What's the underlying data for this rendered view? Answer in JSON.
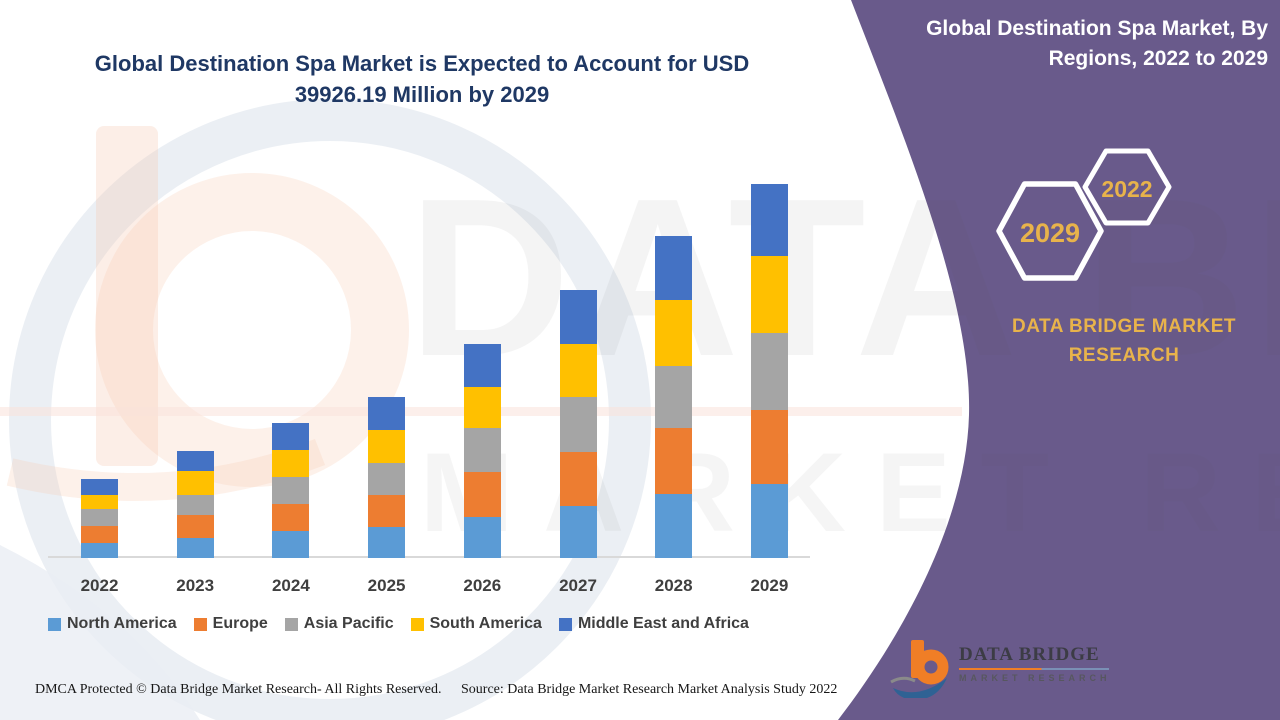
{
  "chart": {
    "title": "Global Destination Spa Market is Expected to Account for USD 39926.19 Million by 2029"
  },
  "chart_data": {
    "type": "bar",
    "stacked": true,
    "unit": "USD Million",
    "values_estimated_from_pixels": true,
    "categories": [
      "2022",
      "2023",
      "2024",
      "2025",
      "2026",
      "2027",
      "2028",
      "2029"
    ],
    "series": [
      {
        "name": "North America",
        "color": "#5B9BD5",
        "values": [
          1610,
          2180,
          2860,
          3330,
          4410,
          5550,
          6850,
          7860
        ]
      },
      {
        "name": "Europe",
        "color": "#ED7D31",
        "values": [
          1860,
          2370,
          2870,
          3370,
          4730,
          5720,
          7020,
          8000
        ]
      },
      {
        "name": "Asia Pacific",
        "color": "#A5A5A5",
        "values": [
          1720,
          2150,
          2870,
          3440,
          4730,
          5870,
          6600,
          8215
        ]
      },
      {
        "name": "South America",
        "color": "#FFC000",
        "values": [
          1580,
          2580,
          2900,
          3580,
          4440,
          5720,
          7020,
          8215
        ]
      },
      {
        "name": "Middle East and Africa",
        "color": "#4472C4",
        "values": [
          1720,
          2120,
          2900,
          3480,
          4590,
          5740,
          6910,
          7636.19
        ]
      }
    ],
    "totals": [
      8490,
      11400,
      14400,
      17200,
      22900,
      28600,
      34400,
      39926.19
    ],
    "highlight_value_2029_total": 39926.19,
    "ylim": [
      0,
      40000
    ],
    "grid": false,
    "y_axis_shown": false,
    "legend_position": "bottom"
  },
  "side_panel": {
    "title": "Global Destination Spa Market, By Regions, 2022 to 2029",
    "hexagons": {
      "small": "2022",
      "large": "2029"
    },
    "brand": "DATA BRIDGE MARKET RESEARCH",
    "colors": {
      "band": "#695A8B",
      "accent_gold": "#E8B34B",
      "title_navy": "#1F3864"
    }
  },
  "logo": {
    "title": "DATA BRIDGE",
    "subtitle": "MARKET RESEARCH"
  },
  "watermark": {
    "line1": "DATA BRIDGE",
    "line2": "MARKET RESEARCH"
  },
  "footer": {
    "dmca": "DMCA Protected © Data Bridge Market Research- All Rights Reserved.",
    "source": "Source: Data Bridge Market Research Market Analysis Study 2022"
  }
}
